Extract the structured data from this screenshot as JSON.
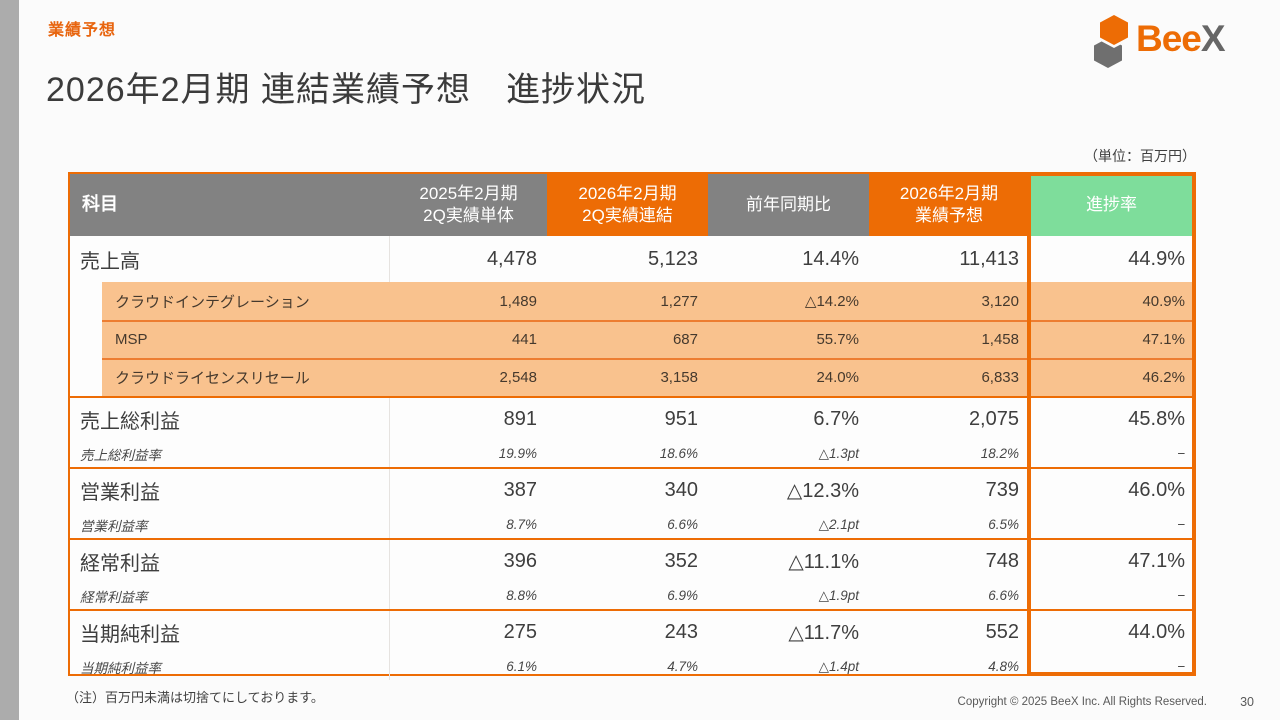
{
  "slide": {
    "eyebrow": "業績予想",
    "title": "2026年2月期 連結業績予想　進捗状況",
    "unit_note": "（単位：百万円）",
    "footnote": "（注）百万円未満は切捨てにしております。",
    "copyright": "Copyright © 2025 BeeX Inc. All Rights Reserved.",
    "page_number": "30"
  },
  "logo": {
    "icon": "beex-hexagon-mark",
    "text_primary": "Bee",
    "text_secondary": "X"
  },
  "colors": {
    "accent_orange": "#ED6C05",
    "header_gray": "#828282",
    "progress_green": "#7EDD9B",
    "subrow_peach": "#F9C28E",
    "separator_orange": "#ED7D31",
    "left_strip_gray": "#ACACAC"
  },
  "table": {
    "columns": [
      {
        "key": "item",
        "label": "科目",
        "bg": "gray"
      },
      {
        "key": "q2-2025-standalone",
        "label": "2025年2月期\n2Q実績単体",
        "bg": "gray"
      },
      {
        "key": "q2-2026-consolidated",
        "label": "2026年2月期\n2Q実績連結",
        "bg": "orange"
      },
      {
        "key": "yoy",
        "label": "前年同期比",
        "bg": "gray"
      },
      {
        "key": "forecast-2026",
        "label": "2026年2月期\n業績予想",
        "bg": "orange"
      },
      {
        "key": "progress",
        "label": "進捗率",
        "bg": "green"
      }
    ],
    "rows": [
      {
        "type": "main",
        "label": "売上高",
        "values": [
          "4,478",
          "5,123",
          "14.4%",
          "11,413",
          "44.9%"
        ]
      },
      {
        "type": "sub",
        "label": "クラウドインテグレーション",
        "values": [
          "1,489",
          "1,277",
          "△14.2%",
          "3,120",
          "40.9%"
        ]
      },
      {
        "type": "sub",
        "sep": true,
        "label": "MSP",
        "values": [
          "441",
          "687",
          "55.7%",
          "1,458",
          "47.1%"
        ]
      },
      {
        "type": "sub",
        "sep": true,
        "label": "クラウドライセンスリセール",
        "values": [
          "2,548",
          "3,158",
          "24.0%",
          "6,833",
          "46.2%"
        ]
      },
      {
        "type": "main",
        "section": true,
        "label": "売上総利益",
        "values": [
          "891",
          "951",
          "6.7%",
          "2,075",
          "45.8%"
        ]
      },
      {
        "type": "rate",
        "label": "売上総利益率",
        "values": [
          "19.9%",
          "18.6%",
          "△1.3pt",
          "18.2%",
          "−"
        ]
      },
      {
        "type": "main",
        "section": true,
        "label": "営業利益",
        "values": [
          "387",
          "340",
          "△12.3%",
          "739",
          "46.0%"
        ]
      },
      {
        "type": "rate",
        "label": "営業利益率",
        "values": [
          "8.7%",
          "6.6%",
          "△2.1pt",
          "6.5%",
          "−"
        ]
      },
      {
        "type": "main",
        "section": true,
        "label": "経常利益",
        "values": [
          "396",
          "352",
          "△11.1%",
          "748",
          "47.1%"
        ]
      },
      {
        "type": "rate",
        "label": "経常利益率",
        "values": [
          "8.8%",
          "6.9%",
          "△1.9pt",
          "6.6%",
          "−"
        ]
      },
      {
        "type": "main",
        "section": true,
        "label": "当期純利益",
        "values": [
          "275",
          "243",
          "△11.7%",
          "552",
          "44.0%"
        ]
      },
      {
        "type": "rate",
        "label": "当期純利益率",
        "values": [
          "6.1%",
          "4.7%",
          "△1.4pt",
          "4.8%",
          "−"
        ]
      }
    ]
  }
}
